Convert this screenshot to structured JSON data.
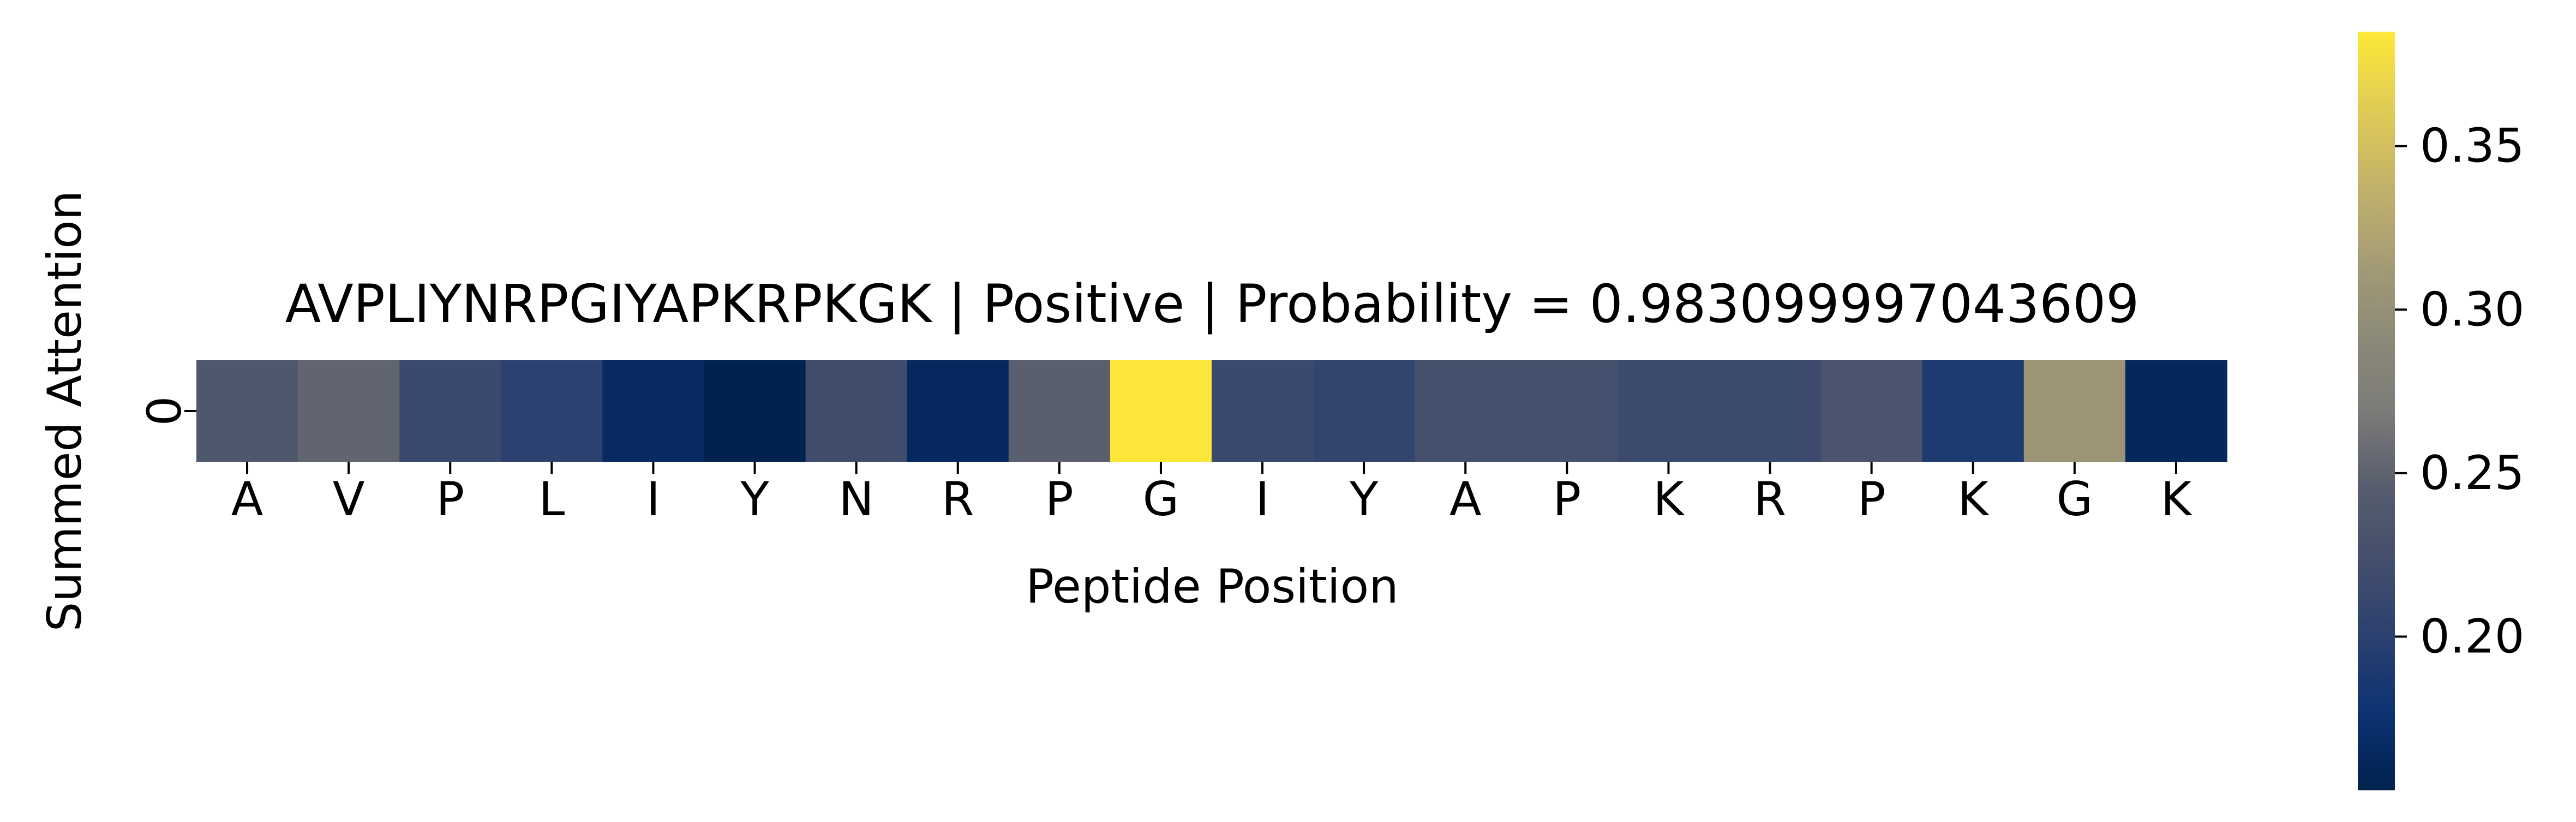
{
  "chart_data": {
    "type": "heatmap",
    "title": "AVPLIYNRPGIYAPKRPKGK | Positive | Probability = 0.983099997043609",
    "xlabel": "Peptide Position",
    "ylabel": "Summed Attention",
    "row_labels": [
      "0"
    ],
    "categories": [
      "A",
      "V",
      "P",
      "L",
      "I",
      "Y",
      "N",
      "R",
      "P",
      "G",
      "I",
      "Y",
      "A",
      "P",
      "K",
      "R",
      "P",
      "K",
      "G",
      "K"
    ],
    "values": [
      0.237,
      0.252,
      0.214,
      0.201,
      0.165,
      0.152,
      0.22,
      0.163,
      0.247,
      0.383,
      0.214,
      0.207,
      0.225,
      0.225,
      0.216,
      0.216,
      0.232,
      0.189,
      0.306,
      0.162
    ],
    "colormap": "cividis",
    "colorbar": {
      "min": 0.153,
      "max": 0.385,
      "ticks": [
        0.2,
        0.25,
        0.3,
        0.35
      ],
      "tick_labels": [
        "0.20",
        "0.25",
        "0.30",
        "0.35"
      ]
    }
  }
}
